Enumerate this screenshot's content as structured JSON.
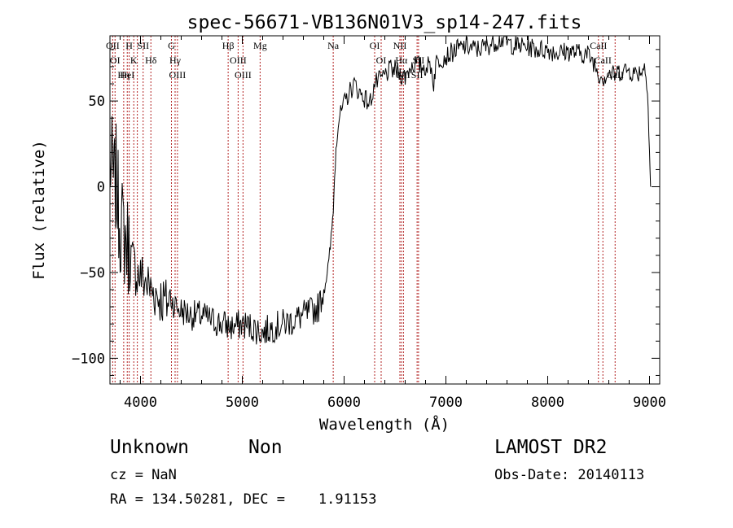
{
  "chart_data": {
    "type": "line",
    "title": "spec-56671-VB136N01V3_sp14-247.fits",
    "xlabel": "Wavelength (Å)",
    "ylabel": "Flux (relative)",
    "xlim": [
      3700,
      9100
    ],
    "ylim": [
      -115,
      88
    ],
    "xticks": [
      4000,
      5000,
      6000,
      7000,
      8000,
      9000
    ],
    "yticks": [
      -100,
      -50,
      0,
      50
    ],
    "grid": false,
    "series": [
      {
        "name": "flux",
        "color": "#000000",
        "x": [
          3700,
          3720,
          3740,
          3760,
          3780,
          3800,
          3820,
          3850,
          3880,
          3900,
          3930,
          3960,
          4000,
          4050,
          4100,
          4150,
          4200,
          4250,
          4300,
          4350,
          4400,
          4500,
          4600,
          4700,
          4800,
          4900,
          5000,
          5100,
          5200,
          5300,
          5400,
          5500,
          5600,
          5700,
          5750,
          5800,
          5850,
          5880,
          5900,
          5920,
          5950,
          6000,
          6050,
          6100,
          6150,
          6200,
          6250,
          6300,
          6350,
          6400,
          6450,
          6500,
          6550,
          6600,
          6650,
          6700,
          6750,
          6800,
          6850,
          6880,
          6900,
          6950,
          7000,
          7050,
          7100,
          7200,
          7300,
          7400,
          7500,
          7550,
          7600,
          7700,
          7800,
          7900,
          8000,
          8100,
          8200,
          8300,
          8400,
          8450,
          8500,
          8550,
          8600,
          8650,
          8700,
          8750,
          8800,
          8850,
          8900,
          8950,
          8980,
          9000,
          9010
        ],
        "y": [
          15,
          10,
          0,
          5,
          -10,
          -20,
          -25,
          -30,
          -35,
          -40,
          -45,
          -50,
          -52,
          -55,
          -60,
          -62,
          -65,
          -68,
          -65,
          -70,
          -72,
          -75,
          -75,
          -78,
          -80,
          -82,
          -80,
          -82,
          -85,
          -82,
          -80,
          -78,
          -75,
          -72,
          -70,
          -60,
          -45,
          -25,
          -5,
          25,
          40,
          48,
          55,
          60,
          55,
          52,
          48,
          60,
          62,
          65,
          68,
          68,
          66,
          64,
          70,
          72,
          70,
          70,
          71,
          60,
          72,
          75,
          76,
          78,
          80,
          82,
          80,
          82,
          85,
          86,
          84,
          82,
          82,
          80,
          80,
          78,
          79,
          78,
          77,
          73,
          66,
          64,
          66,
          65,
          67,
          68,
          68,
          66,
          67,
          70,
          60,
          20,
          0
        ]
      }
    ],
    "lines": [
      {
        "wl": 3727,
        "labels": [
          "OII"
        ]
      },
      {
        "wl": 3750,
        "labels": [
          "OI"
        ]
      },
      {
        "wl": 3835,
        "labels": [
          "Hη"
        ]
      },
      {
        "wl": 3870,
        "labels": [
          "HeI"
        ]
      },
      {
        "wl": 3889,
        "labels": [
          "H"
        ]
      },
      {
        "wl": 3934,
        "labels": [
          "K"
        ]
      },
      {
        "wl": 3969,
        "labels": []
      },
      {
        "wl": 4026,
        "labels": [
          "SII"
        ]
      },
      {
        "wl": 4102,
        "labels": [
          "Hδ"
        ]
      },
      {
        "wl": 4304,
        "labels": [
          "G"
        ]
      },
      {
        "wl": 4340,
        "labels": [
          "Hγ"
        ]
      },
      {
        "wl": 4363,
        "labels": [
          "OIII"
        ]
      },
      {
        "wl": 4861,
        "labels": [
          "Hβ"
        ]
      },
      {
        "wl": 4959,
        "labels": [
          "OIII"
        ]
      },
      {
        "wl": 5007,
        "labels": [
          "OIII"
        ]
      },
      {
        "wl": 5175,
        "labels": [
          "Mg"
        ]
      },
      {
        "wl": 5893,
        "labels": [
          "Na"
        ]
      },
      {
        "wl": 6300,
        "labels": [
          "OI"
        ]
      },
      {
        "wl": 6364,
        "labels": [
          "OI"
        ]
      },
      {
        "wl": 6548,
        "labels": [
          "NII"
        ]
      },
      {
        "wl": 6563,
        "labels": [
          "Hα"
        ]
      },
      {
        "wl": 6583,
        "labels": [
          "NII"
        ]
      },
      {
        "wl": 6717,
        "labels": [
          "SII"
        ]
      },
      {
        "wl": 6731,
        "labels": [
          "SII"
        ]
      },
      {
        "wl": 8498,
        "labels": [
          "CaII"
        ]
      },
      {
        "wl": 8542,
        "labels": [
          "CaII"
        ]
      },
      {
        "wl": 8662,
        "labels": [
          "CaII"
        ]
      }
    ]
  },
  "info": {
    "class": "Unknown",
    "subclass": "Non",
    "survey": "LAMOST DR2",
    "cz": "cz = NaN",
    "obs_date": "Obs-Date: 20140113",
    "radec": "RA = 134.50281, DEC =    1.91153"
  }
}
